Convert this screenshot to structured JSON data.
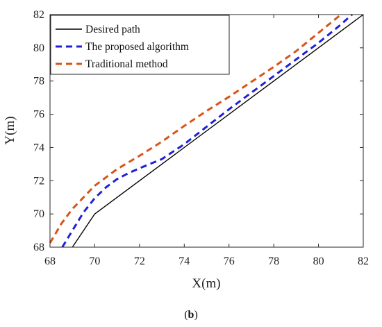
{
  "chart_data": {
    "type": "line",
    "title": "",
    "xlabel": "X(m)",
    "ylabel": "Y(m)",
    "xlim": [
      68,
      82
    ],
    "ylim": [
      68,
      82
    ],
    "xticks": [
      "68",
      "70",
      "72",
      "74",
      "76",
      "78",
      "80",
      "82"
    ],
    "yticks": [
      "68",
      "70",
      "72",
      "74",
      "76",
      "78",
      "80",
      "82"
    ],
    "grid": false,
    "legend_position": "top-left",
    "caption": {
      "open": "(",
      "bold": "b",
      "close": ")"
    },
    "series": [
      {
        "name": "Desired path",
        "color": "#000000",
        "style": "solid",
        "x": [
          69.0,
          70.0,
          82.0
        ],
        "y": [
          68.0,
          70.0,
          82.0
        ]
      },
      {
        "name": "The proposed algorithm",
        "color": "#1f1fdc",
        "style": "dashed",
        "x": [
          68.55,
          69.0,
          69.5,
          70.0,
          70.5,
          71.0,
          71.5,
          72.0,
          73.0,
          74.0,
          75.0,
          76.0,
          77.0,
          78.0,
          79.0,
          80.0,
          81.0,
          81.5
        ],
        "y": [
          68.0,
          69.0,
          70.1,
          70.95,
          71.6,
          72.1,
          72.45,
          72.75,
          73.3,
          74.2,
          75.25,
          76.3,
          77.3,
          78.3,
          79.3,
          80.3,
          81.4,
          82.0
        ]
      },
      {
        "name": "Traditional method",
        "color": "#d95319",
        "style": "dashed",
        "x": [
          68.0,
          68.5,
          69.0,
          69.5,
          70.0,
          70.5,
          71.0,
          71.5,
          72.0,
          73.0,
          74.0,
          75.0,
          76.0,
          77.0,
          78.0,
          79.0,
          80.0,
          81.0
        ],
        "y": [
          68.25,
          69.4,
          70.3,
          71.0,
          71.7,
          72.2,
          72.7,
          73.1,
          73.5,
          74.35,
          75.3,
          76.2,
          77.05,
          77.95,
          78.85,
          79.8,
          80.9,
          82.0
        ]
      }
    ]
  }
}
